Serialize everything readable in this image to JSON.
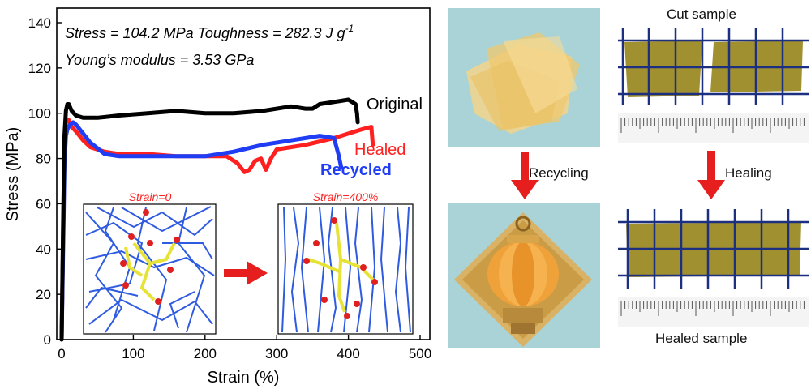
{
  "chart_data": {
    "type": "line",
    "xlabel": "Strain (%)",
    "ylabel": "Stress (MPa)",
    "xlim": [
      0,
      500
    ],
    "ylim": [
      0,
      140
    ],
    "xticks": [
      0,
      100,
      200,
      300,
      400,
      500
    ],
    "yticks": [
      0,
      20,
      40,
      60,
      80,
      100,
      120,
      140
    ],
    "grid": false,
    "annotations": {
      "line1": "Stress = 104.2 MPa  Toughness = 282.3 J g",
      "line1_sup": "-1",
      "line2": "Young’s modulus = 3.53 GPa"
    },
    "series": [
      {
        "name": "Original",
        "color": "#000000",
        "x": [
          0,
          2,
          4,
          6,
          8,
          10,
          14,
          20,
          30,
          50,
          80,
          120,
          160,
          200,
          240,
          280,
          320,
          340,
          350,
          360,
          380,
          400,
          410,
          412,
          413
        ],
        "y": [
          0,
          50,
          90,
          101,
          104,
          104,
          101,
          99,
          98,
          98,
          99,
          100,
          101,
          100,
          100,
          101,
          103,
          102,
          102,
          104,
          105,
          106,
          104,
          100,
          96
        ]
      },
      {
        "name": "Healed",
        "color": "#ff2020",
        "x": [
          0,
          2,
          4,
          6,
          8,
          10,
          14,
          20,
          30,
          40,
          60,
          80,
          120,
          160,
          200,
          230,
          245,
          255,
          262,
          270,
          278,
          285,
          292,
          300,
          340,
          380,
          420,
          432,
          434
        ],
        "y": [
          0,
          45,
          85,
          96,
          97,
          97,
          94,
          92,
          88,
          85,
          83,
          82,
          82,
          81,
          81,
          81,
          78,
          74,
          75,
          79,
          80,
          75,
          80,
          84,
          86,
          89,
          93,
          94,
          86
        ]
      },
      {
        "name": "Recycled",
        "color": "#1f3df5",
        "x": [
          0,
          2,
          4,
          6,
          8,
          10,
          12,
          16,
          20,
          30,
          40,
          60,
          80,
          120,
          160,
          200,
          240,
          280,
          320,
          360,
          380,
          386,
          390
        ],
        "y": [
          0,
          40,
          78,
          90,
          93,
          94,
          95,
          96,
          95,
          91,
          87,
          82,
          81,
          81,
          81,
          81,
          83,
          86,
          88,
          90,
          89,
          82,
          76
        ]
      }
    ]
  },
  "insets": {
    "left_label": "Strain=0",
    "right_label": "Strain=400%"
  },
  "photos": {
    "recycling_label": "Recycling",
    "healing_label": "Healing",
    "cut_label": "Cut sample",
    "healed_label": "Healed sample"
  }
}
